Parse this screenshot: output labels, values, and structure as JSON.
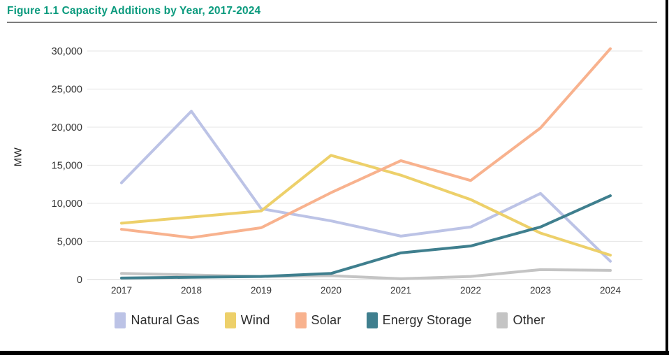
{
  "page": {
    "figure_title": "Figure 1.1 Capacity Additions by Year, 2017-2024",
    "title_color": "#0a9a7d"
  },
  "chart_data": {
    "type": "line",
    "title": "Figure 1.1 Capacity Additions by Year, 2017-2024",
    "xlabel": "",
    "ylabel": "MW",
    "categories": [
      "2017",
      "2018",
      "2019",
      "2020",
      "2021",
      "2022",
      "2023",
      "2024"
    ],
    "y_ticks": [
      0,
      5000,
      10000,
      15000,
      20000,
      25000,
      30000
    ],
    "y_tick_labels": [
      "0",
      "5,000",
      "10,000",
      "15,000",
      "20,000",
      "25,000",
      "30,000"
    ],
    "ylim": [
      0,
      30000
    ],
    "grid": "horizontal",
    "legend_position": "bottom",
    "series": [
      {
        "name": "Natural Gas",
        "color": "#bcc3e6",
        "values": [
          12700,
          22100,
          9300,
          7700,
          5700,
          6900,
          11300,
          2400
        ]
      },
      {
        "name": "Wind",
        "color": "#edd06a",
        "values": [
          7400,
          8200,
          9000,
          16300,
          13700,
          10500,
          6100,
          3200
        ]
      },
      {
        "name": "Solar",
        "color": "#f8b28e",
        "values": [
          6600,
          5500,
          6800,
          11400,
          15600,
          13000,
          19900,
          30300
        ]
      },
      {
        "name": "Energy Storage",
        "color": "#3f7f8e",
        "values": [
          200,
          300,
          400,
          800,
          3500,
          4400,
          6900,
          11000
        ]
      },
      {
        "name": "Other",
        "color": "#c4c4c4",
        "values": [
          800,
          600,
          400,
          500,
          100,
          400,
          1300,
          1200
        ]
      }
    ]
  }
}
